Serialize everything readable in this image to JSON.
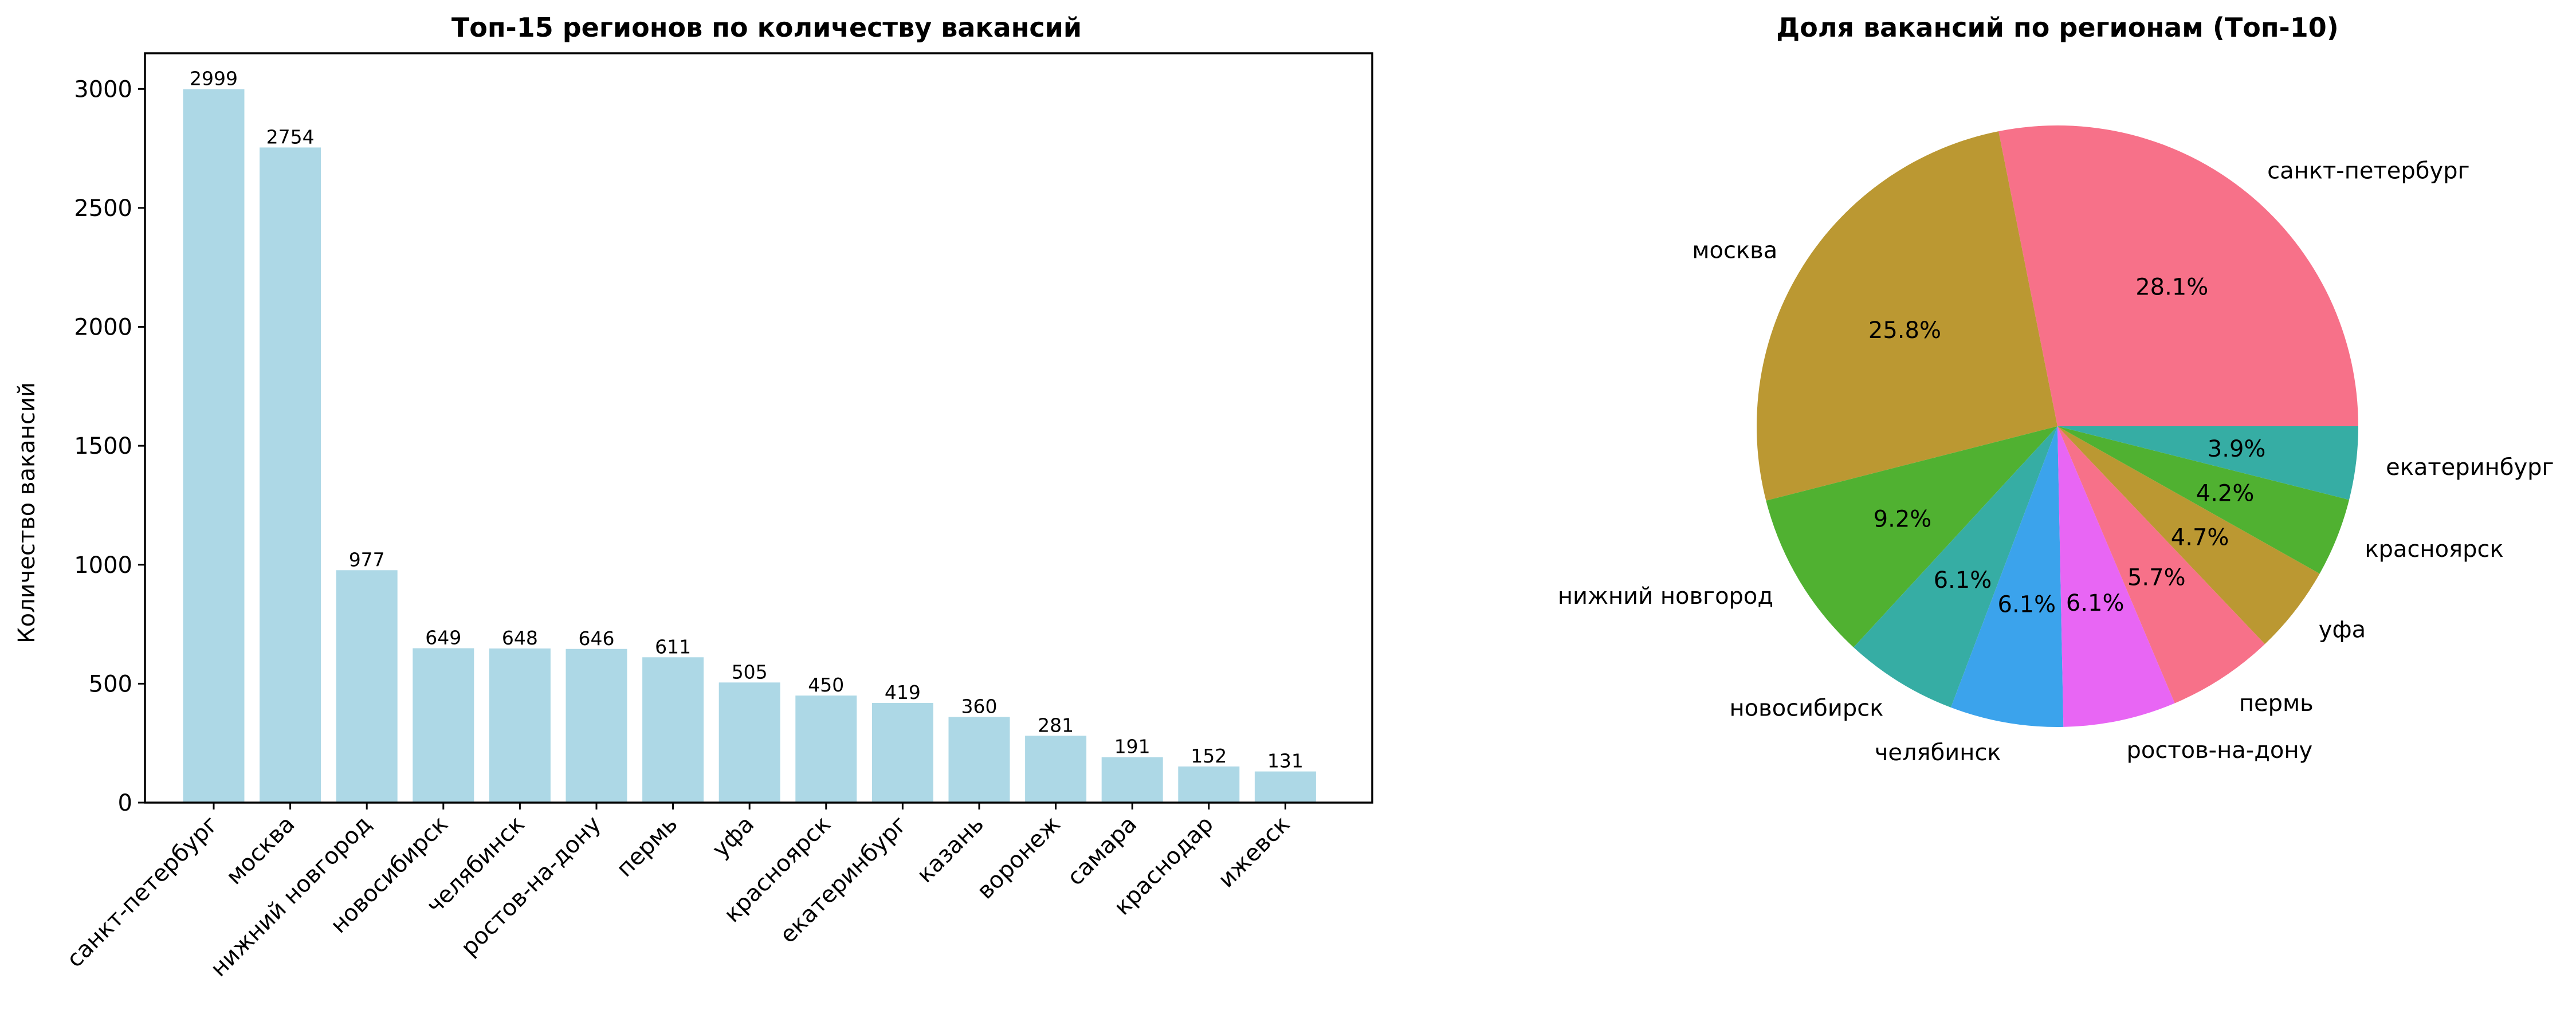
{
  "chart_data": [
    {
      "type": "bar",
      "title": "Топ-15 регионов по количеству вакансий",
      "xlabel": "",
      "ylabel": "Количество вакансий",
      "categories": [
        "санкт-петербург",
        "москва",
        "нижний новгород",
        "новосибирск",
        "челябинск",
        "ростов-на-дону",
        "пермь",
        "уфа",
        "красноярск",
        "екатеринбург",
        "казань",
        "воронеж",
        "самара",
        "краснодар",
        "ижевск"
      ],
      "values": [
        2999,
        2754,
        977,
        649,
        648,
        646,
        611,
        505,
        450,
        419,
        360,
        281,
        191,
        152,
        131
      ],
      "value_labels": [
        "2999",
        "2754",
        "977",
        "649",
        "648",
        "646",
        "611",
        "505",
        "450",
        "419",
        "360",
        "281",
        "191",
        "152",
        "131"
      ],
      "ylim": [
        0,
        3150
      ],
      "yticks": [
        0,
        500,
        1000,
        1500,
        2000,
        2500,
        3000
      ],
      "ytick_labels": [
        "0",
        "500",
        "1000",
        "1500",
        "2000",
        "2500",
        "3000"
      ],
      "bar_color": "#add8e6",
      "grid": false
    },
    {
      "type": "pie",
      "title": "Доля вакансий по регионам (Топ-10)",
      "labels": [
        "санкт-петербург",
        "москва",
        "нижний новгород",
        "новосибирск",
        "челябинск",
        "ростов-на-дону",
        "пермь",
        "уфа",
        "красноярск",
        "екатеринбург"
      ],
      "values": [
        2999,
        2754,
        977,
        649,
        648,
        646,
        611,
        505,
        450,
        419
      ],
      "percent_labels": [
        "28.1%",
        "25.8%",
        "9.2%",
        "6.1%",
        "6.1%",
        "6.1%",
        "5.7%",
        "4.7%",
        "4.2%",
        "3.9%"
      ],
      "colors": [
        "#f77189",
        "#bb9832",
        "#50b131",
        "#36ada4",
        "#3ba3ec",
        "#e866f4",
        "#f77189",
        "#bb9832",
        "#50b131",
        "#36ada4"
      ],
      "start_angle": 0,
      "direction": "counterclockwise"
    }
  ]
}
